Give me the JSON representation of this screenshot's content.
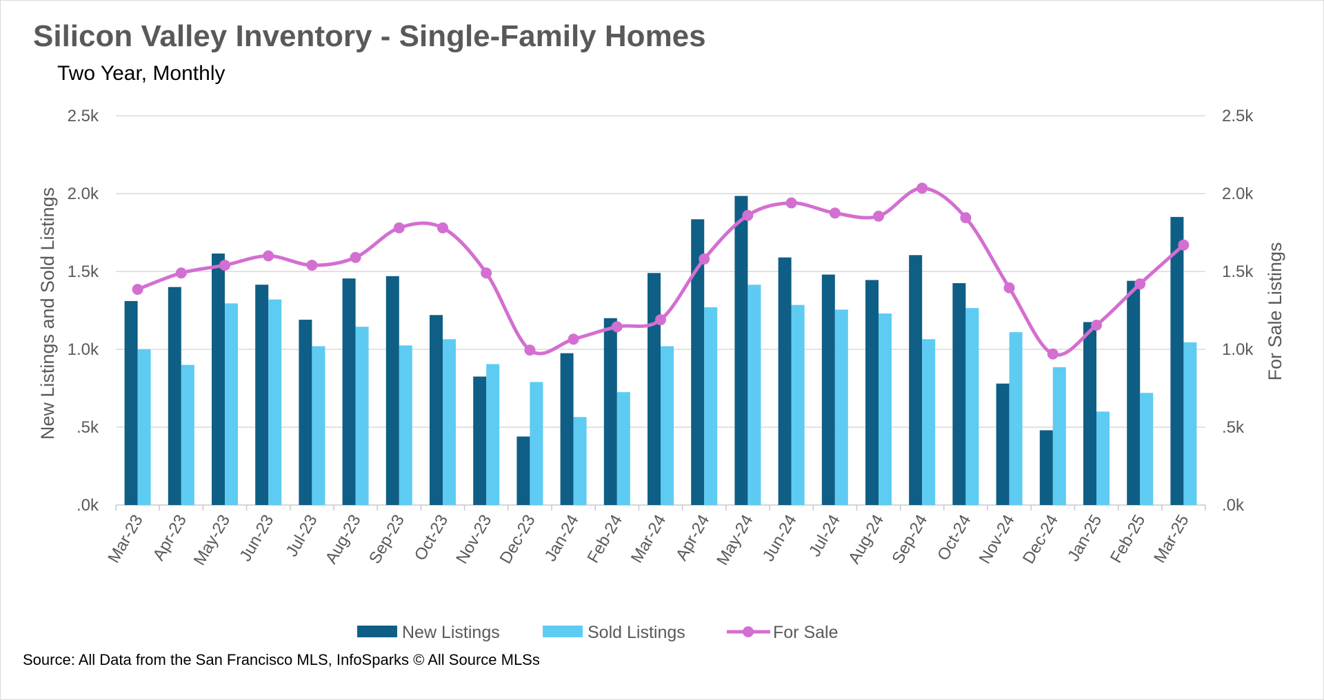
{
  "chart_data": {
    "type": "bar",
    "title": "Silicon Valley Inventory - Single-Family Homes",
    "subtitle": "Two Year, Monthly",
    "source": "Source: All Data from the San Francisco MLS, InfoSparks © All Source MLSs",
    "ylabel_left": "New Listings and Sold Listings",
    "ylabel_right": "For Sale Listings",
    "ylim": [
      0,
      2500
    ],
    "yticks": [
      ".0k",
      ".5k",
      "1.0k",
      "1.5k",
      "2.0k",
      "2.5k"
    ],
    "grid": true,
    "legend_position": "bottom",
    "categories": [
      "Mar-23",
      "Apr-23",
      "May-23",
      "Jun-23",
      "Jul-23",
      "Aug-23",
      "Sep-23",
      "Oct-23",
      "Nov-23",
      "Dec-23",
      "Jan-24",
      "Feb-24",
      "Mar-24",
      "Apr-24",
      "May-24",
      "Jun-24",
      "Jul-24",
      "Aug-24",
      "Sep-24",
      "Oct-24",
      "Nov-24",
      "Dec-24",
      "Jan-25",
      "Feb-25",
      "Mar-25"
    ],
    "series": [
      {
        "name": "New Listings",
        "type": "bar",
        "color": "#0f5e85",
        "values": [
          1310,
          1400,
          1615,
          1415,
          1190,
          1455,
          1470,
          1220,
          825,
          440,
          975,
          1200,
          1490,
          1835,
          1985,
          1590,
          1480,
          1445,
          1605,
          1425,
          780,
          480,
          1175,
          1440,
          1850
        ]
      },
      {
        "name": "Sold Listings",
        "type": "bar",
        "color": "#5ecbf3",
        "values": [
          1000,
          900,
          1295,
          1320,
          1020,
          1145,
          1025,
          1065,
          905,
          790,
          565,
          725,
          1020,
          1270,
          1415,
          1285,
          1255,
          1230,
          1065,
          1265,
          1110,
          885,
          600,
          720,
          1045
        ]
      },
      {
        "name": "For Sale",
        "type": "line",
        "color": "#d36fd1",
        "values": [
          1385,
          1490,
          1540,
          1600,
          1540,
          1590,
          1780,
          1780,
          1490,
          995,
          1065,
          1145,
          1190,
          1580,
          1860,
          1940,
          1875,
          1855,
          2035,
          1845,
          1395,
          970,
          1155,
          1420,
          1670
        ]
      }
    ]
  }
}
